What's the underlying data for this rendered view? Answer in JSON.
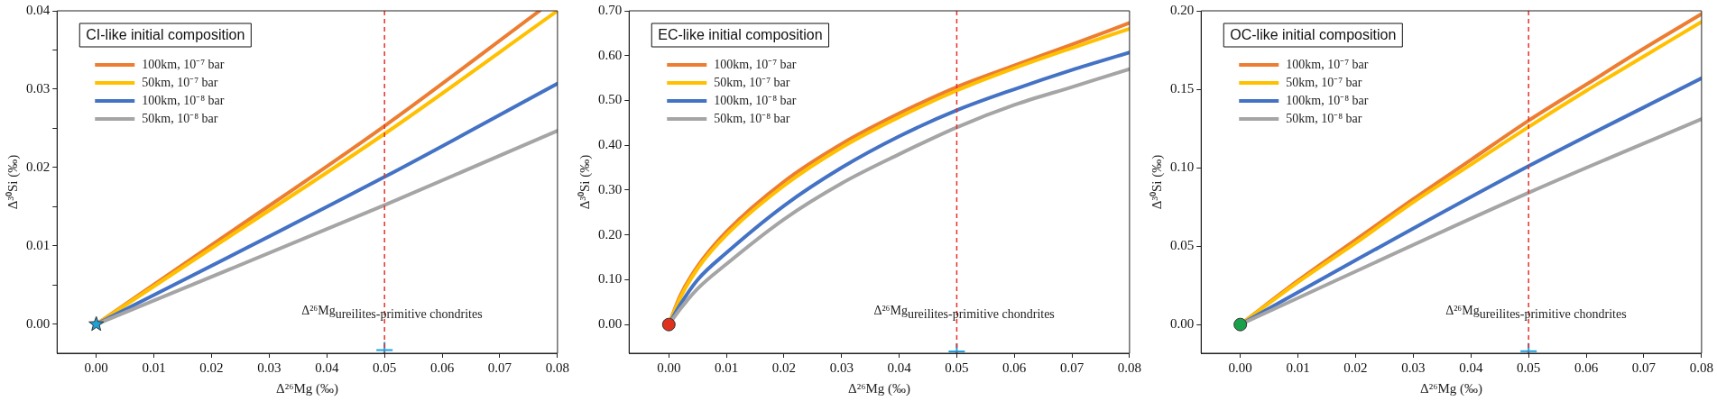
{
  "chart_data": [
    {
      "type": "line",
      "title": "CI-like initial composition",
      "xlabel": "Δ²⁶Mg (‰)",
      "ylabel": "Δ³⁰Si (‰)",
      "legend": "top left",
      "grid": false,
      "marker": "none",
      "line_style": "solid",
      "xlim": [
        -0.0068,
        0.08
      ],
      "ylim": [
        -0.0037,
        0.04
      ],
      "xticks": [
        {
          "value": 0,
          "label": "0.00"
        },
        {
          "value": 0.01,
          "label": "0.01"
        },
        {
          "value": 0.02,
          "label": "0.02"
        },
        {
          "value": 0.03,
          "label": "0.03"
        },
        {
          "value": 0.04,
          "label": "0.04"
        },
        {
          "value": 0.05,
          "label": "0.05"
        },
        {
          "value": 0.06,
          "label": "0.06"
        },
        {
          "value": 0.07,
          "label": "0.07"
        },
        {
          "value": 0.08,
          "label": "0.08"
        }
      ],
      "yticks": [
        {
          "value": 0,
          "label": "0.00"
        },
        {
          "value": 0.005,
          "label": null
        },
        {
          "value": 0.01,
          "label": "0.01"
        },
        {
          "value": 0.015,
          "label": null
        },
        {
          "value": 0.02,
          "label": "0.02"
        },
        {
          "value": 0.025,
          "label": null
        },
        {
          "value": 0.03,
          "label": "0.03"
        },
        {
          "value": 0.035,
          "label": null
        },
        {
          "value": 0.04,
          "label": "0.04"
        }
      ],
      "series": [
        {
          "name": "100km, 10⁻⁷ bar",
          "color": "#ed7d31",
          "x": [
            0,
            0.02,
            0.05,
            0.0769
          ],
          "values": [
            0,
            0.0101,
            0.0253,
            0.04
          ]
        },
        {
          "name": "50km, 10⁻⁷ bar",
          "color": "#ffc000",
          "x": [
            0,
            0.02,
            0.05,
            0.08
          ],
          "values": [
            0,
            0.0097,
            0.0243,
            0.04
          ]
        },
        {
          "name": "100km, 10⁻⁸ bar",
          "color": "#4472c4",
          "x": [
            0,
            0.05,
            0.08
          ],
          "values": [
            0,
            0.0188,
            0.0307
          ]
        },
        {
          "name": "50km, 10⁻⁸ bar",
          "color": "#a5a5a5",
          "x": [
            0,
            0.05,
            0.08
          ],
          "values": [
            0,
            0.0152,
            0.0247
          ]
        },
        {
          "type": "scatter",
          "marker": "star",
          "color": "#1fa0d8",
          "x": [
            0
          ],
          "values": [
            0
          ]
        },
        {
          "type": "scatter",
          "marker": "cross",
          "color": "#1fa0e0",
          "x": [
            0.05
          ],
          "values": [
            -0.0033
          ]
        }
      ],
      "ref_lines": [
        {
          "axis": "x",
          "value": 0.05,
          "label": "Δ²⁶Mg$_{ureilites-primitive chondrites}$",
          "color": "#e8302a",
          "line_style": "dashed"
        }
      ]
    },
    {
      "type": "line",
      "title": "EC-like initial composition",
      "xlabel": "Δ²⁶Mg (‰)",
      "ylabel": "Δ³⁰Si (‰)",
      "legend": "top left",
      "grid": false,
      "marker": "none",
      "line_style": "solid",
      "xlim": [
        -0.0069,
        0.08
      ],
      "ylim": [
        -0.064,
        0.7
      ],
      "xticks": [
        {
          "value": 0,
          "label": "0.00"
        },
        {
          "value": 0.01,
          "label": "0.01"
        },
        {
          "value": 0.02,
          "label": "0.02"
        },
        {
          "value": 0.03,
          "label": "0.03"
        },
        {
          "value": 0.04,
          "label": "0.04"
        },
        {
          "value": 0.05,
          "label": "0.05"
        },
        {
          "value": 0.06,
          "label": "0.06"
        },
        {
          "value": 0.07,
          "label": "0.07"
        },
        {
          "value": 0.08,
          "label": "0.08"
        }
      ],
      "yticks": [
        {
          "value": 0,
          "label": "0.00"
        },
        {
          "value": 0.1,
          "label": "0.10"
        },
        {
          "value": 0.2,
          "label": "0.20"
        },
        {
          "value": 0.3,
          "label": "0.30"
        },
        {
          "value": 0.4,
          "label": "0.40"
        },
        {
          "value": 0.5,
          "label": "0.50"
        },
        {
          "value": 0.6,
          "label": "0.60"
        },
        {
          "value": 0.7,
          "label": "0.70"
        }
      ],
      "series": [
        {
          "name": "100km, 10⁻⁷ bar",
          "color": "#ed7d31",
          "x": [
            0,
            0.002,
            0.005,
            0.01,
            0.02,
            0.03,
            0.04,
            0.05,
            0.06,
            0.07,
            0.08
          ],
          "values": [
            0,
            0.065,
            0.13,
            0.207,
            0.319,
            0.403,
            0.471,
            0.53,
            0.578,
            0.625,
            0.673
          ]
        },
        {
          "name": "50km, 10⁻⁷ bar",
          "color": "#ffc000",
          "x": [
            0,
            0.002,
            0.005,
            0.01,
            0.02,
            0.03,
            0.04,
            0.05,
            0.06,
            0.07,
            0.08
          ],
          "values": [
            0,
            0.06,
            0.125,
            0.2,
            0.31,
            0.395,
            0.463,
            0.522,
            0.572,
            0.617,
            0.66
          ]
        },
        {
          "name": "100km, 10⁻⁸ bar",
          "color": "#4472c4",
          "x": [
            0,
            0.002,
            0.005,
            0.01,
            0.02,
            0.03,
            0.04,
            0.05,
            0.06,
            0.07,
            0.08
          ],
          "values": [
            0,
            0.045,
            0.1,
            0.16,
            0.265,
            0.35,
            0.42,
            0.478,
            0.525,
            0.568,
            0.607
          ]
        },
        {
          "name": "50km, 10⁻⁸ bar",
          "color": "#a5a5a5",
          "x": [
            0,
            0.002,
            0.005,
            0.01,
            0.02,
            0.03,
            0.04,
            0.05,
            0.06,
            0.07,
            0.08
          ],
          "values": [
            0,
            0.035,
            0.08,
            0.135,
            0.235,
            0.315,
            0.38,
            0.44,
            0.49,
            0.53,
            0.57
          ]
        },
        {
          "type": "scatter",
          "marker": "circle",
          "color": "#e0301e",
          "x": [
            0
          ],
          "values": [
            0
          ]
        },
        {
          "type": "scatter",
          "marker": "cross",
          "color": "#1fa0e0",
          "x": [
            0.05
          ],
          "values": [
            -0.06
          ]
        }
      ],
      "ref_lines": [
        {
          "axis": "x",
          "value": 0.05,
          "label": "Δ²⁶Mg$_{ureilites-primitive chondrites}$",
          "color": "#e8302a",
          "line_style": "dashed"
        }
      ]
    },
    {
      "type": "line",
      "title": "OC-like initial composition",
      "xlabel": "Δ²⁶Mg (‰)",
      "ylabel": "Δ³⁰Si (‰)",
      "legend": "top left",
      "grid": false,
      "marker": "none",
      "line_style": "solid",
      "xlim": [
        -0.0068,
        0.08
      ],
      "ylim": [
        -0.0183,
        0.2
      ],
      "xticks": [
        {
          "value": 0,
          "label": "0.00"
        },
        {
          "value": 0.01,
          "label": "0.01"
        },
        {
          "value": 0.02,
          "label": "0.02"
        },
        {
          "value": 0.03,
          "label": "0.03"
        },
        {
          "value": 0.04,
          "label": "0.04"
        },
        {
          "value": 0.05,
          "label": "0.05"
        },
        {
          "value": 0.06,
          "label": "0.06"
        },
        {
          "value": 0.07,
          "label": "0.07"
        },
        {
          "value": 0.08,
          "label": "0.08"
        }
      ],
      "yticks": [
        {
          "value": 0,
          "label": "0.00"
        },
        {
          "value": 0.05,
          "label": "0.05"
        },
        {
          "value": 0.1,
          "label": "0.10"
        },
        {
          "value": 0.15,
          "label": "0.15"
        },
        {
          "value": 0.2,
          "label": "0.20"
        }
      ],
      "series": [
        {
          "name": "100km, 10⁻⁷ bar",
          "color": "#ed7d31",
          "x": [
            0,
            0.01,
            0.02,
            0.03,
            0.04,
            0.05,
            0.06,
            0.07,
            0.08
          ],
          "values": [
            0,
            0.028,
            0.054,
            0.08,
            0.105,
            0.13,
            0.153,
            0.176,
            0.198
          ]
        },
        {
          "name": "50km, 10⁻⁷ bar",
          "color": "#ffc000",
          "x": [
            0,
            0.01,
            0.02,
            0.03,
            0.04,
            0.05,
            0.06,
            0.07,
            0.08
          ],
          "values": [
            0,
            0.027,
            0.052,
            0.078,
            0.102,
            0.126,
            0.149,
            0.171,
            0.193
          ]
        },
        {
          "name": "100km, 10⁻⁸ bar",
          "color": "#4472c4",
          "x": [
            0,
            0.02,
            0.05,
            0.08
          ],
          "values": [
            0,
            0.041,
            0.101,
            0.157
          ]
        },
        {
          "name": "50km, 10⁻⁸ bar",
          "color": "#a5a5a5",
          "x": [
            0,
            0.05,
            0.08
          ],
          "values": [
            0,
            0.084,
            0.131
          ]
        },
        {
          "type": "scatter",
          "marker": "circle",
          "color": "#1aa04a",
          "x": [
            0
          ],
          "values": [
            0
          ]
        },
        {
          "type": "scatter",
          "marker": "cross",
          "color": "#1fa0e0",
          "x": [
            0.05
          ],
          "values": [
            -0.017
          ]
        }
      ],
      "ref_lines": [
        {
          "axis": "x",
          "value": 0.05,
          "label": "Δ²⁶Mg$_{ureilites-primitive chondrites}$",
          "color": "#e8302a",
          "line_style": "dashed"
        }
      ]
    }
  ]
}
